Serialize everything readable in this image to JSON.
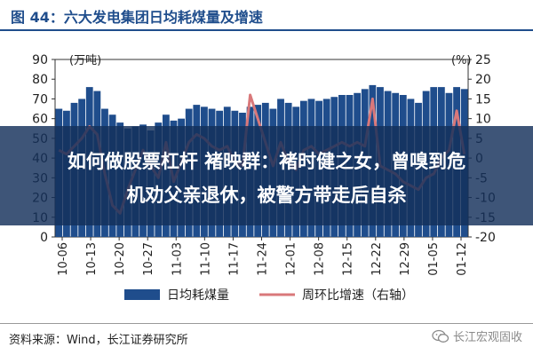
{
  "title": "图 44：六大发电集团日均耗煤量及增速",
  "overlay": {
    "line1": "如何做股票杠杆 褚映群：褚时健之女，曾嗅到危",
    "line2": "机劝父亲退休，被警方带走后自杀"
  },
  "source": "资料来源：Wind，长江证券研究所",
  "watermark": "长江宏观固收",
  "chart_data": {
    "type": "bar",
    "title": "图 44：六大发电集团日均耗煤量及增速",
    "left_axis_label": "(万吨)",
    "right_axis_label": "(%)",
    "ylim": [
      0,
      90
    ],
    "y2lim": [
      -20,
      25
    ],
    "y_ticks": [
      "0",
      "10",
      "20",
      "30",
      "40",
      "50",
      "60",
      "70",
      "80",
      "90"
    ],
    "y2_ticks": [
      "-20",
      "-15",
      "-10",
      "-5",
      "0",
      "5",
      "10",
      "15",
      "20",
      "25"
    ],
    "x_tick_labels": [
      "10-06",
      "10-13",
      "10-20",
      "10-27",
      "11-03",
      "11-10",
      "11-17",
      "11-24",
      "12-01",
      "12-08",
      "12-15",
      "12-22",
      "12-29",
      "01-05",
      "01-12"
    ],
    "grid": false,
    "legend_position": "bottom",
    "series": [
      {
        "name": "日均耗煤量",
        "axis": "left",
        "values": [
          65,
          64,
          68,
          70,
          76,
          74,
          65,
          62,
          58,
          55,
          56,
          57,
          54,
          58,
          62,
          59,
          60,
          65,
          67,
          66,
          65,
          64,
          66,
          64,
          63,
          66,
          67,
          68,
          65,
          70,
          68,
          66,
          69,
          70,
          69,
          70,
          71,
          72,
          72,
          73,
          75,
          77,
          76,
          74,
          73,
          72,
          70,
          68,
          74,
          76,
          76,
          73,
          76,
          75
        ]
      },
      {
        "name": "周环比增速（右轴）",
        "axis": "right",
        "values": [
          2,
          1,
          3,
          5,
          8,
          6,
          -4,
          -12,
          -14,
          -8,
          -3,
          2,
          -2,
          -5,
          4,
          -6,
          -1,
          4,
          6,
          5,
          3,
          2,
          3,
          -1,
          -2,
          16,
          10,
          4,
          -2,
          4,
          -1,
          -3,
          2,
          3,
          1,
          2,
          3,
          4,
          3,
          4,
          3,
          15,
          -2,
          -3,
          -4,
          -6,
          -7,
          -8,
          -5,
          -4,
          0,
          2,
          12,
          1
        ]
      }
    ]
  },
  "colors": {
    "bar": "#1f4d8c",
    "line": "#d9787a",
    "title": "#1f4d8c",
    "axis_text": "#222222"
  }
}
